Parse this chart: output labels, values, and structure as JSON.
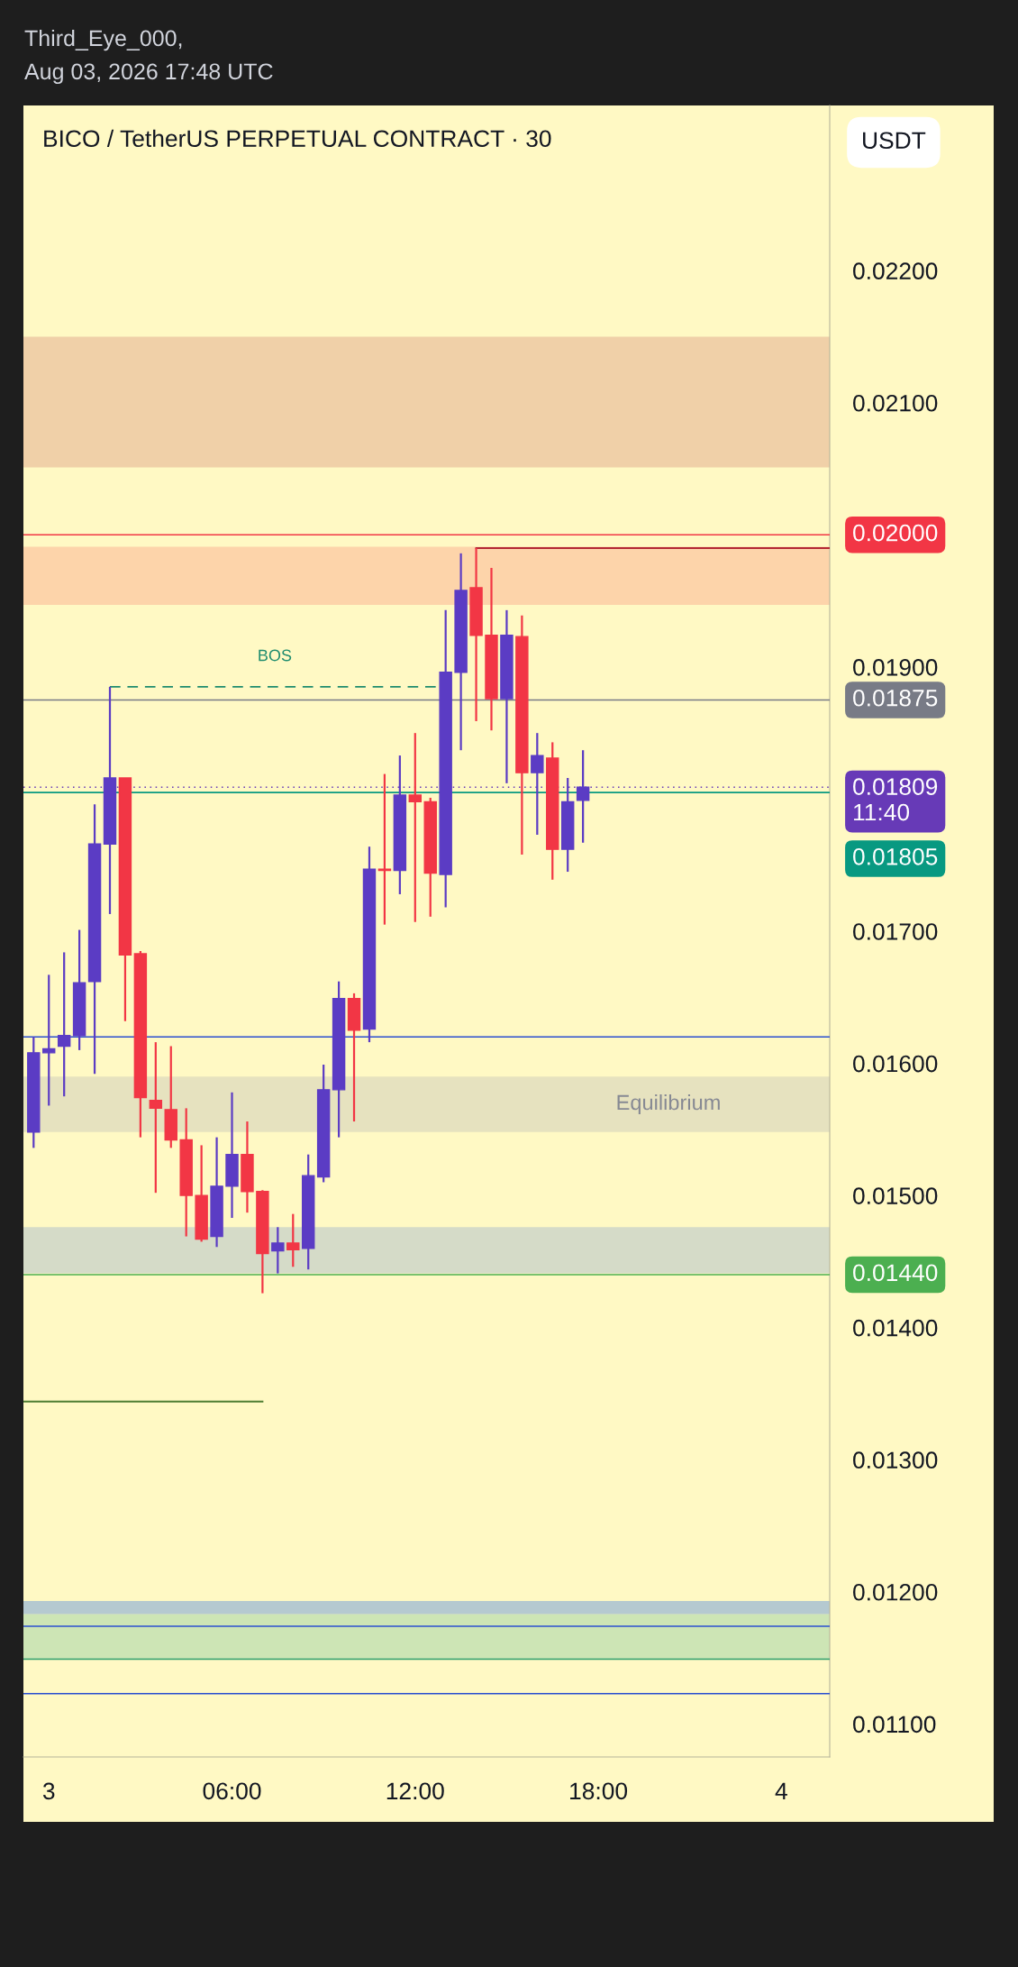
{
  "chart_data": {
    "type": "candlestick",
    "title": "BICO / TetherUS PERPETUAL CONTRACT · 30",
    "ylabel": "USDT",
    "annotations": [
      "Third_Eye_000,\nAug 03, 2026 17:48 UTC",
      {
        "text": "BOS",
        "x": "2026-08-03T07:24",
        "y": 0.01885
      }
    ],
    "x": [
      "2026-08-02T23:30",
      "2026-08-03T00:00",
      "2026-08-03T00:30",
      "2026-08-03T01:00",
      "2026-08-03T01:30",
      "2026-08-03T02:00",
      "2026-08-03T02:30",
      "2026-08-03T03:00",
      "2026-08-03T03:30",
      "2026-08-03T04:00",
      "2026-08-03T04:30",
      "2026-08-03T05:00",
      "2026-08-03T05:30",
      "2026-08-03T06:00",
      "2026-08-03T06:30",
      "2026-08-03T07:00",
      "2026-08-03T07:30",
      "2026-08-03T08:00",
      "2026-08-03T08:30",
      "2026-08-03T09:00",
      "2026-08-03T09:30",
      "2026-08-03T10:00",
      "2026-08-03T10:30",
      "2026-08-03T11:00",
      "2026-08-03T11:30",
      "2026-08-03T12:00",
      "2026-08-03T12:30",
      "2026-08-03T13:00",
      "2026-08-03T13:30",
      "2026-08-03T14:00",
      "2026-08-03T14:30",
      "2026-08-03T15:00",
      "2026-08-03T15:30",
      "2026-08-03T16:00",
      "2026-08-03T16:30",
      "2026-08-03T17:00",
      "2026-08-03T17:30"
    ],
    "ohlc": [
      [
        0.01548,
        0.0162,
        0.01536,
        0.01608
      ],
      [
        0.01608,
        0.01667,
        0.01568,
        0.01611
      ],
      [
        0.01613,
        0.01684,
        0.01575,
        0.01621
      ],
      [
        0.01621,
        0.01701,
        0.0161,
        0.01661
      ],
      [
        0.01662,
        0.01796,
        0.01592,
        0.01766
      ],
      [
        0.01766,
        0.01885,
        0.01713,
        0.01816
      ],
      [
        0.01816,
        0.01816,
        0.01632,
        0.01682
      ],
      [
        0.01683,
        0.01685,
        0.01544,
        0.01574
      ],
      [
        0.01572,
        0.01616,
        0.01502,
        0.01566
      ],
      [
        0.01565,
        0.01613,
        0.01536,
        0.01542
      ],
      [
        0.01542,
        0.01566,
        0.01469,
        0.015
      ],
      [
        0.015,
        0.01538,
        0.01465,
        0.01467
      ],
      [
        0.01469,
        0.01544,
        0.01461,
        0.01507
      ],
      [
        0.01507,
        0.01578,
        0.01483,
        0.01531
      ],
      [
        0.01531,
        0.01556,
        0.01487,
        0.01503
      ],
      [
        0.01503,
        0.01504,
        0.01426,
        0.01456
      ],
      [
        0.01458,
        0.01476,
        0.01441,
        0.01464
      ],
      [
        0.01464,
        0.01486,
        0.01446,
        0.01459
      ],
      [
        0.0146,
        0.01531,
        0.01444,
        0.01515
      ],
      [
        0.01514,
        0.01599,
        0.0151,
        0.0158
      ],
      [
        0.0158,
        0.01662,
        0.01544,
        0.01649
      ],
      [
        0.01649,
        0.01653,
        0.01556,
        0.01625
      ],
      [
        0.01626,
        0.01764,
        0.01616,
        0.01747
      ],
      [
        0.01747,
        0.01819,
        0.01705,
        0.01746
      ],
      [
        0.01746,
        0.01833,
        0.01728,
        0.01803
      ],
      [
        0.01803,
        0.0185,
        0.01707,
        0.01798
      ],
      [
        0.01798,
        0.01801,
        0.01711,
        0.01744
      ],
      [
        0.01743,
        0.01943,
        0.01718,
        0.01896
      ],
      [
        0.01896,
        0.01986,
        0.01837,
        0.01958
      ],
      [
        0.0196,
        0.0199,
        0.01859,
        0.01924
      ],
      [
        0.01924,
        0.01975,
        0.01852,
        0.01876
      ],
      [
        0.01876,
        0.01943,
        0.01812,
        0.01924
      ],
      [
        0.01923,
        0.01939,
        0.01758,
        0.0182
      ],
      [
        0.0182,
        0.0185,
        0.01773,
        0.01833
      ],
      [
        0.01831,
        0.01843,
        0.01739,
        0.01762
      ],
      [
        0.01762,
        0.01816,
        0.01745,
        0.01798
      ],
      [
        0.01799,
        0.01837,
        0.01767,
        0.01809
      ]
    ],
    "colors": [
      "#5b3cc4",
      "#5b3cc4",
      "#5b3cc4",
      "#5b3cc4",
      "#5b3cc4",
      "#5b3cc4",
      "#f23645",
      "#f23645",
      "#f23645",
      "#f23645",
      "#f23645",
      "#f23645",
      "#5b3cc4",
      "#5b3cc4",
      "#f23645",
      "#f23645",
      "#5b3cc4",
      "#f23645",
      "#5b3cc4",
      "#5b3cc4",
      "#5b3cc4",
      "#f23645",
      "#5b3cc4",
      "#f23645",
      "#5b3cc4",
      "#f23645",
      "#f23645",
      "#5b3cc4",
      "#5b3cc4",
      "#f23645",
      "#f23645",
      "#5b3cc4",
      "#f23645",
      "#5b3cc4",
      "#f23645",
      "#5b3cc4",
      "#5b3cc4"
    ],
    "series": [
      {
        "type": "line",
        "x": [
          "2026-08-03T02:00",
          "2026-08-03T12:42"
        ],
        "values": [
          0.01885,
          0.01885
        ],
        "color": "#1e8c6e",
        "line_style": "dashed"
      },
      {
        "type": "line",
        "x": [
          "2026-08-03T14:00",
          "2026-08-04T01:35"
        ],
        "values": [
          0.0199,
          0.0199
        ],
        "color": "#b22833"
      },
      {
        "type": "line",
        "x": [
          "2026-08-02T23:10",
          "2026-08-03T07:00"
        ],
        "values": [
          0.01344,
          0.01344
        ],
        "color": "#4e7d32"
      }
    ],
    "xlim": [
      "2026-08-02T23:10",
      "2026-08-04T01:35"
    ],
    "xticks": [
      {
        "value": "2026-08-03T00:00",
        "label": "3"
      },
      {
        "value": "2026-08-03T06:00",
        "label": "06:00"
      },
      {
        "value": "2026-08-03T12:00",
        "label": "12:00"
      },
      {
        "value": "2026-08-03T18:00",
        "label": "18:00"
      },
      {
        "value": "2026-08-04T00:00",
        "label": "4"
      }
    ],
    "ylim": [
      0.01075,
      0.02325
    ],
    "yticks": [
      {
        "value": 0.011,
        "label": "0.01100"
      },
      {
        "value": 0.012,
        "label": "0.01200"
      },
      {
        "value": 0.013,
        "label": "0.01300"
      },
      {
        "value": 0.014,
        "label": "0.01400"
      },
      {
        "value": 0.015,
        "label": "0.01500"
      },
      {
        "value": 0.016,
        "label": "0.01600"
      },
      {
        "value": 0.017,
        "label": "0.01700"
      },
      {
        "value": 0.019,
        "label": "0.01900"
      },
      {
        "value": 0.021,
        "label": "0.02100"
      },
      {
        "value": 0.022,
        "label": "0.02200"
      }
    ],
    "ref_lines": [
      {
        "axis": "y",
        "value": 0.02,
        "label": "0.02000",
        "color": "#f23645"
      },
      {
        "axis": "y",
        "value": 0.01875,
        "label": "0.01875",
        "color": "#787b86"
      },
      {
        "axis": "y",
        "value": 0.01809,
        "label": "0.01809\n11:40",
        "color": "#673ab7",
        "line_style": "dotted"
      },
      {
        "axis": "y",
        "value": 0.01805,
        "label": "0.01805",
        "color": "#089981"
      },
      {
        "axis": "y",
        "value": 0.0144,
        "label": "0.01440",
        "color": "#4caf50"
      },
      {
        "axis": "y",
        "value": 0.0162,
        "color": "#2a4fd0"
      },
      {
        "axis": "y",
        "value": 0.01174,
        "color": "#2a4fd0"
      },
      {
        "axis": "y",
        "value": 0.01149,
        "color": "#2e9e6e"
      },
      {
        "axis": "y",
        "value": 0.01123,
        "color": "#2a4fd0"
      }
    ],
    "bands": [
      {
        "axis": "y",
        "from": 0.02051,
        "to": 0.0215,
        "color": "#f0d0a8"
      },
      {
        "axis": "y",
        "from": 0.01947,
        "to": 0.01991,
        "color": "#fdd4aa"
      },
      {
        "axis": "y",
        "from": 0.01548,
        "to": 0.0159,
        "label": "Equilibrium",
        "color": "#e6e2bf"
      },
      {
        "axis": "y",
        "from": 0.01441,
        "to": 0.01476,
        "color": "#d5dbc8"
      },
      {
        "axis": "y",
        "from": 0.01183,
        "to": 0.01193,
        "color": "#b5c9d0"
      },
      {
        "axis": "y",
        "from": 0.01149,
        "to": 0.01183,
        "color": "#cde5b5"
      }
    ]
  }
}
